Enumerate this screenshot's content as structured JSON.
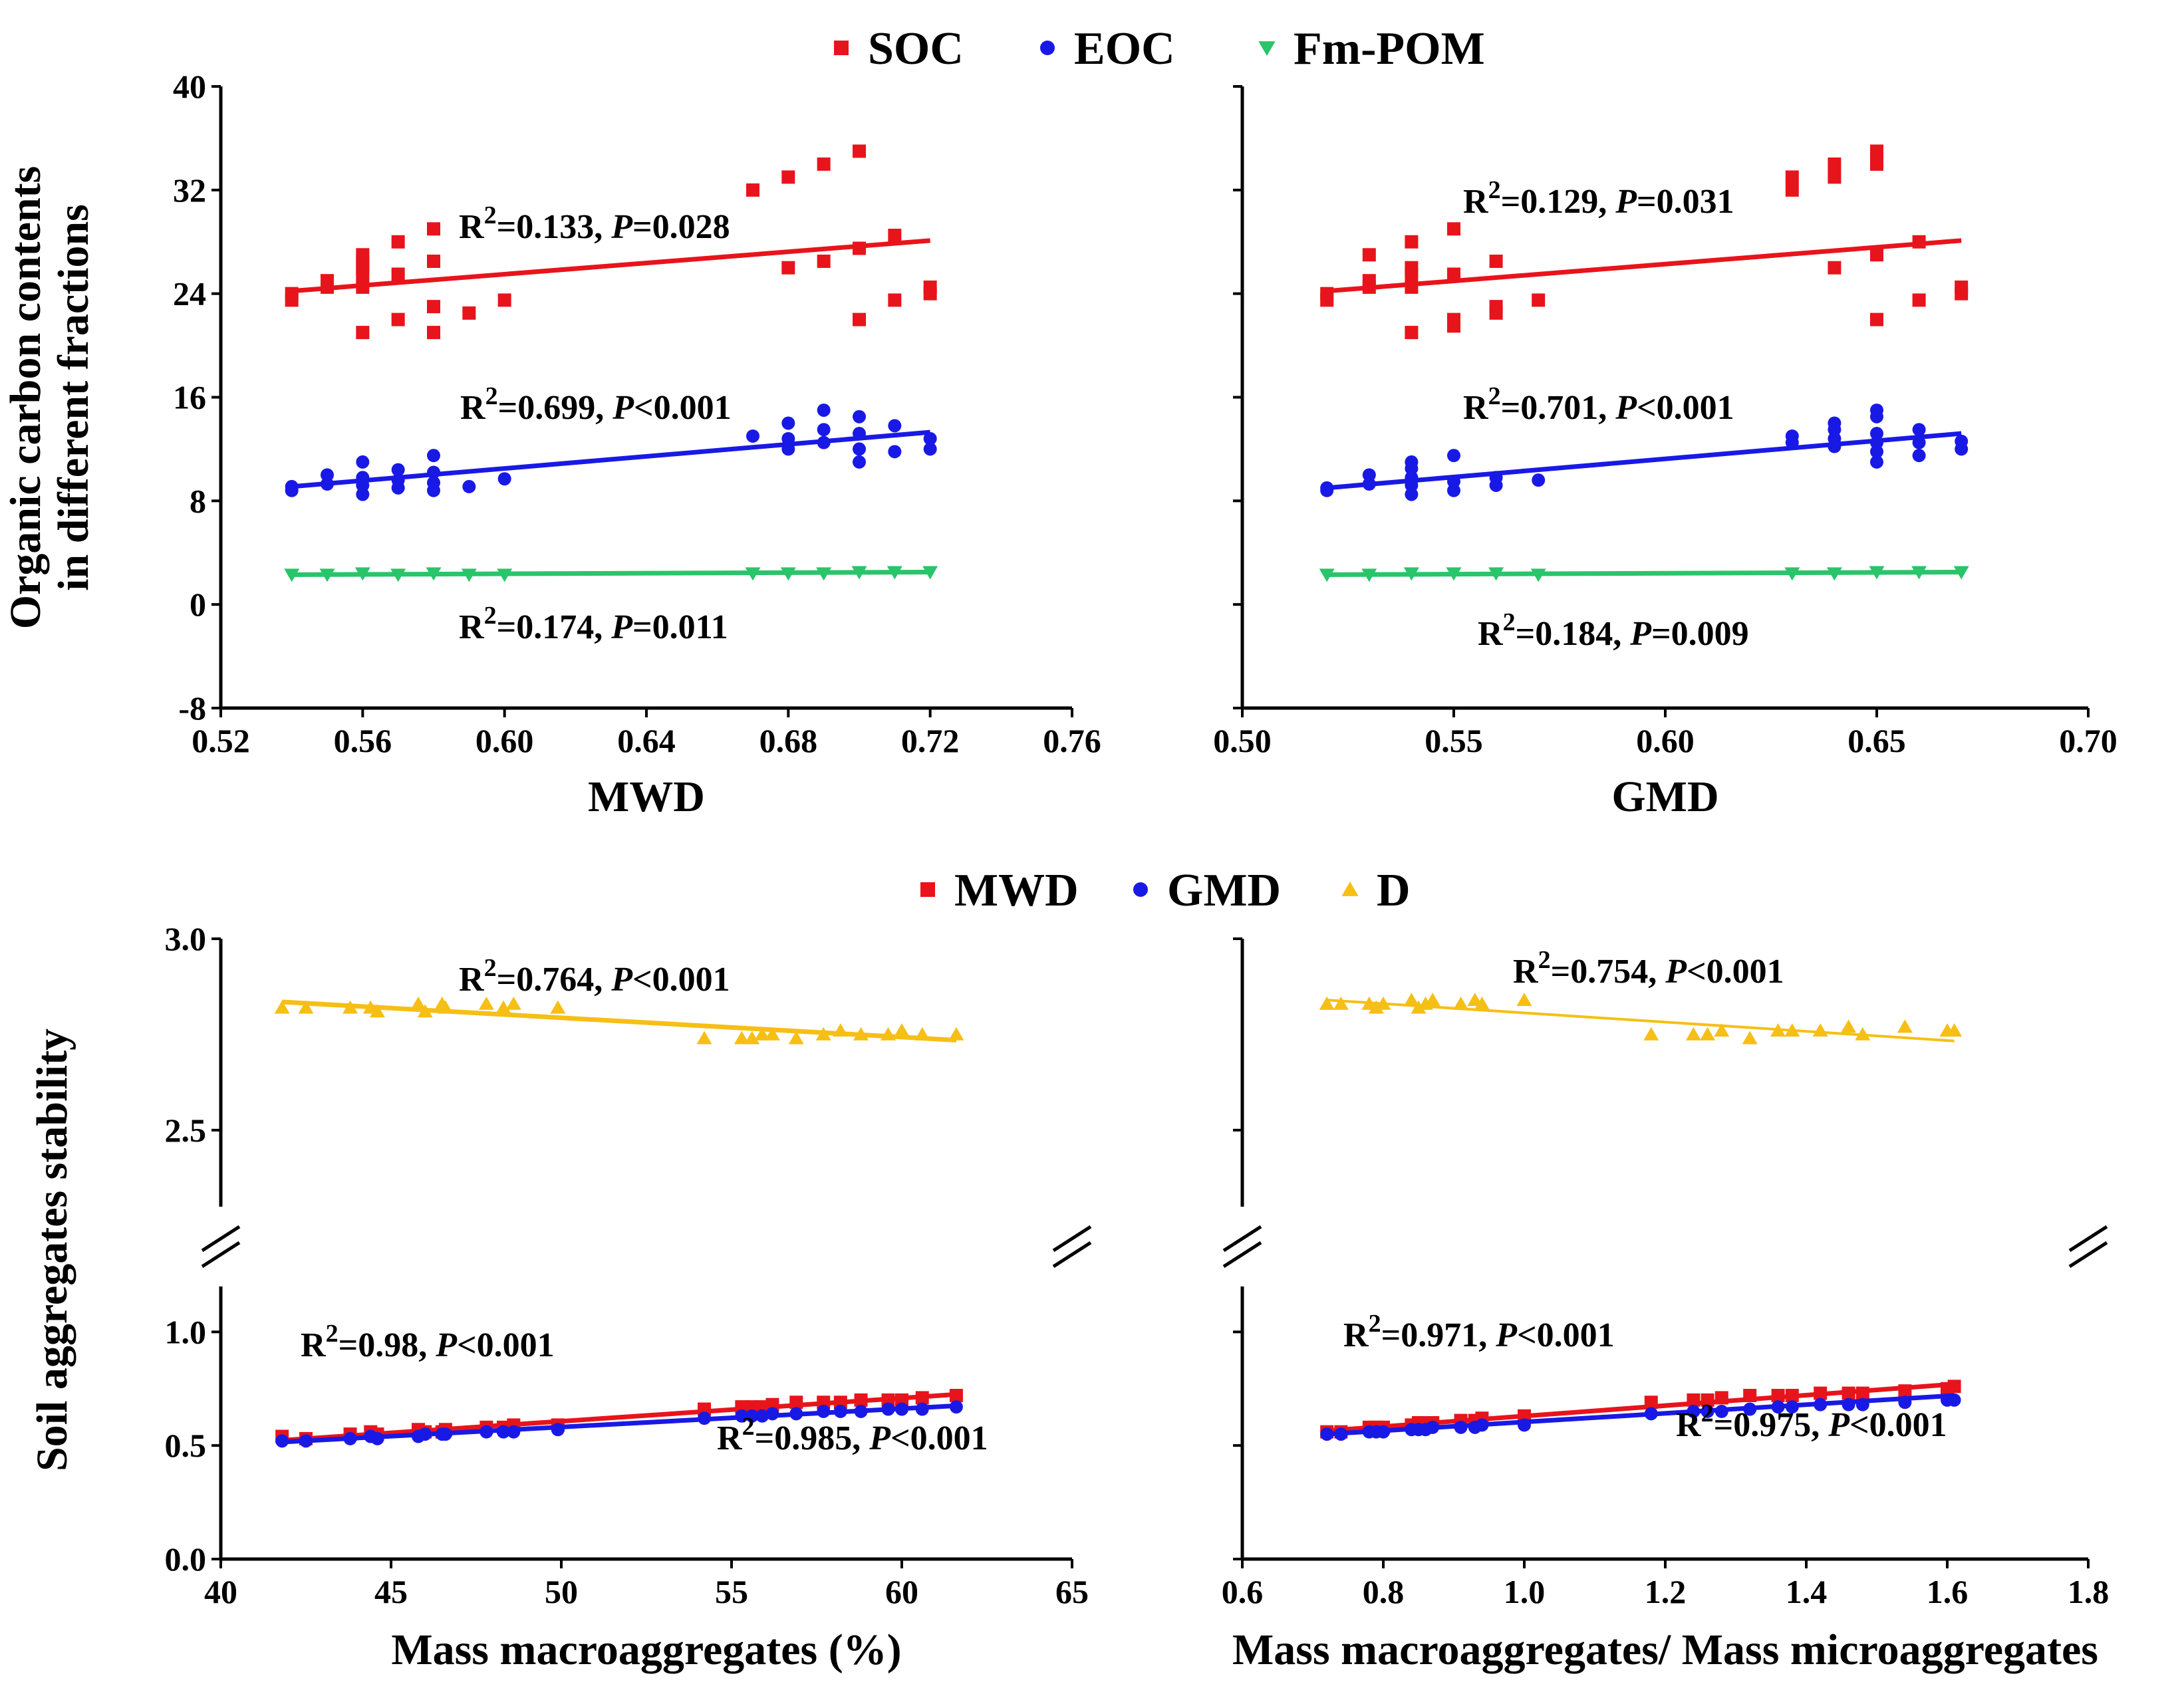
{
  "colors": {
    "soc": "#e8141b",
    "eoc": "#1919e6",
    "fmpom": "#2ac46a",
    "mwd": "#e8141b",
    "gmd": "#1919e6",
    "d": "#f6bf16"
  },
  "legend_top": [
    {
      "label": "SOC",
      "color_key": "soc",
      "marker": "square"
    },
    {
      "label": "EOC",
      "color_key": "eoc",
      "marker": "circle"
    },
    {
      "label": "Fm-POM",
      "color_key": "fmpom",
      "marker": "triangle-down"
    }
  ],
  "legend_bottom": [
    {
      "label": "MWD",
      "color_key": "mwd",
      "marker": "square"
    },
    {
      "label": "GMD",
      "color_key": "gmd",
      "marker": "circle"
    },
    {
      "label": "D",
      "color_key": "d",
      "marker": "triangle-up"
    }
  ],
  "chart_data": [
    {
      "id": "top-left",
      "type": "scatter",
      "xlabel": "MWD",
      "ylabel": "Organic carbon contents in different fractions",
      "ylabel_lines": [
        "Organic carbon contents",
        "in different fractions"
      ],
      "xlim": [
        0.52,
        0.76
      ],
      "ylim": [
        -8,
        40
      ],
      "xticks": [
        "0.52",
        "0.56",
        "0.60",
        "0.64",
        "0.68",
        "0.72",
        "0.76"
      ],
      "yticks": [
        "-8",
        "0",
        "8",
        "16",
        "24",
        "32",
        "40"
      ],
      "series": [
        {
          "name": "SOC",
          "color_key": "soc",
          "marker": "square",
          "x": [
            0.54,
            0.54,
            0.55,
            0.55,
            0.56,
            0.56,
            0.56,
            0.56,
            0.56,
            0.56,
            0.57,
            0.57,
            0.57,
            0.58,
            0.58,
            0.58,
            0.58,
            0.59,
            0.6,
            0.67,
            0.68,
            0.68,
            0.69,
            0.69,
            0.7,
            0.7,
            0.7,
            0.71,
            0.71,
            0.72,
            0.72
          ],
          "y": [
            23.5,
            24.0,
            24.5,
            25.0,
            21.0,
            24.5,
            25.5,
            26.0,
            26.5,
            27.0,
            22.0,
            25.5,
            28.0,
            21.0,
            23.0,
            26.5,
            29.0,
            22.5,
            23.5,
            32.0,
            26.0,
            33.0,
            26.5,
            34.0,
            22.0,
            27.5,
            35.0,
            23.5,
            28.5,
            24.0,
            24.5
          ],
          "fit": {
            "x": [
              0.54,
              0.72
            ],
            "y": [
              24.2,
              28.1
            ]
          },
          "annotation": {
            "r2": "0.133",
            "p_op": "=",
            "p": "0.028"
          }
        },
        {
          "name": "EOC",
          "color_key": "eoc",
          "marker": "circle",
          "x": [
            0.54,
            0.54,
            0.55,
            0.55,
            0.56,
            0.56,
            0.56,
            0.56,
            0.57,
            0.57,
            0.57,
            0.58,
            0.58,
            0.58,
            0.58,
            0.59,
            0.6,
            0.67,
            0.68,
            0.68,
            0.68,
            0.69,
            0.69,
            0.69,
            0.7,
            0.7,
            0.7,
            0.7,
            0.71,
            0.71,
            0.72,
            0.72
          ],
          "y": [
            8.8,
            9.1,
            9.3,
            10.0,
            8.5,
            9.2,
            9.8,
            11.0,
            9.0,
            9.6,
            10.4,
            8.8,
            9.4,
            10.2,
            11.5,
            9.1,
            9.7,
            13.0,
            12.0,
            12.8,
            14.0,
            12.5,
            13.5,
            15.0,
            11.0,
            12.0,
            13.2,
            14.5,
            11.8,
            13.8,
            12.0,
            12.8
          ],
          "fit": {
            "x": [
              0.54,
              0.72
            ],
            "y": [
              9.1,
              13.3
            ]
          },
          "annotation": {
            "r2": "0.699",
            "p_op": "<",
            "p": "0.001"
          }
        },
        {
          "name": "Fm-POM",
          "color_key": "fmpom",
          "marker": "triangle-down",
          "x": [
            0.54,
            0.55,
            0.56,
            0.57,
            0.58,
            0.59,
            0.6,
            0.67,
            0.68,
            0.69,
            0.7,
            0.71,
            0.72
          ],
          "y": [
            2.3,
            2.3,
            2.4,
            2.3,
            2.4,
            2.3,
            2.3,
            2.4,
            2.4,
            2.4,
            2.5,
            2.5,
            2.5
          ],
          "fit": {
            "x": [
              0.54,
              0.72
            ],
            "y": [
              2.3,
              2.5
            ]
          },
          "annotation": {
            "r2": "0.174",
            "p_op": "=",
            "p": "0.011"
          }
        }
      ]
    },
    {
      "id": "top-right",
      "type": "scatter",
      "xlabel": "GMD",
      "ylabel": "",
      "xlim": [
        0.5,
        0.7
      ],
      "ylim": [
        -8,
        40
      ],
      "xticks": [
        "0.50",
        "0.55",
        "0.60",
        "0.65",
        "0.70"
      ],
      "yticks": [],
      "series": [
        {
          "name": "SOC",
          "color_key": "soc",
          "marker": "square",
          "x": [
            0.52,
            0.52,
            0.53,
            0.53,
            0.53,
            0.54,
            0.54,
            0.54,
            0.54,
            0.54,
            0.55,
            0.55,
            0.55,
            0.55,
            0.56,
            0.56,
            0.56,
            0.57,
            0.63,
            0.63,
            0.64,
            0.64,
            0.64,
            0.65,
            0.65,
            0.65,
            0.65,
            0.66,
            0.66,
            0.67,
            0.67
          ],
          "y": [
            23.5,
            24.0,
            24.5,
            25.0,
            27.0,
            21.0,
            24.5,
            25.5,
            26.0,
            28.0,
            21.5,
            22.0,
            25.5,
            29.0,
            22.5,
            23.0,
            26.5,
            23.5,
            32.0,
            33.0,
            26.0,
            33.0,
            34.0,
            22.0,
            27.0,
            34.0,
            35.0,
            23.5,
            28.0,
            24.0,
            24.5
          ],
          "fit": {
            "x": [
              0.52,
              0.67
            ],
            "y": [
              24.2,
              28.1
            ]
          },
          "annotation": {
            "r2": "0.129",
            "p_op": "=",
            "p": "0.031"
          }
        },
        {
          "name": "EOC",
          "color_key": "eoc",
          "marker": "circle",
          "x": [
            0.52,
            0.52,
            0.53,
            0.53,
            0.54,
            0.54,
            0.54,
            0.54,
            0.54,
            0.55,
            0.55,
            0.55,
            0.56,
            0.56,
            0.57,
            0.63,
            0.63,
            0.64,
            0.64,
            0.64,
            0.64,
            0.65,
            0.65,
            0.65,
            0.65,
            0.65,
            0.65,
            0.66,
            0.66,
            0.66,
            0.67,
            0.67
          ],
          "y": [
            8.8,
            9.0,
            9.3,
            10.0,
            8.5,
            9.2,
            9.8,
            10.5,
            11.0,
            8.8,
            9.5,
            11.5,
            9.2,
            9.8,
            9.6,
            12.5,
            13.0,
            12.2,
            12.8,
            13.5,
            14.0,
            11.0,
            11.8,
            12.5,
            13.2,
            14.5,
            15.0,
            11.5,
            12.5,
            13.5,
            12.0,
            12.6
          ],
          "fit": {
            "x": [
              0.52,
              0.67
            ],
            "y": [
              9.0,
              13.2
            ]
          },
          "annotation": {
            "r2": "0.701",
            "p_op": "<",
            "p": "0.001"
          }
        },
        {
          "name": "Fm-POM",
          "color_key": "fmpom",
          "marker": "triangle-down",
          "x": [
            0.52,
            0.53,
            0.54,
            0.55,
            0.56,
            0.57,
            0.63,
            0.64,
            0.65,
            0.66,
            0.67
          ],
          "y": [
            2.3,
            2.3,
            2.4,
            2.4,
            2.4,
            2.3,
            2.4,
            2.4,
            2.5,
            2.5,
            2.5
          ],
          "fit": {
            "x": [
              0.52,
              0.67
            ],
            "y": [
              2.3,
              2.5
            ]
          },
          "annotation": {
            "r2": "0.184",
            "p_op": "=",
            "p": "0.009"
          }
        }
      ]
    },
    {
      "id": "bottom-left",
      "type": "scatter",
      "xlabel": "Mass macroaggregates (%)",
      "ylabel": "Soil aggregates stability",
      "xlim": [
        40,
        65
      ],
      "ylim_lower": [
        0.0,
        1.2
      ],
      "ylim_upper": [
        2.3,
        3.0
      ],
      "xticks": [
        "40",
        "45",
        "50",
        "55",
        "60",
        "65"
      ],
      "yticks_lower": [
        "0.0",
        "0.5",
        "1.0"
      ],
      "yticks_upper": [
        "2.5",
        "3.0"
      ],
      "series": [
        {
          "name": "MWD",
          "color_key": "mwd",
          "marker": "square",
          "x": [
            41.8,
            42.5,
            43.8,
            44.4,
            44.6,
            45.8,
            46.0,
            46.5,
            46.6,
            47.8,
            48.3,
            48.6,
            49.9,
            54.2,
            55.3,
            55.6,
            55.9,
            56.2,
            56.9,
            57.7,
            58.2,
            58.8,
            59.6,
            60.0,
            60.6,
            61.6
          ],
          "y": [
            0.54,
            0.53,
            0.55,
            0.56,
            0.55,
            0.57,
            0.56,
            0.56,
            0.57,
            0.58,
            0.58,
            0.59,
            0.59,
            0.66,
            0.67,
            0.67,
            0.67,
            0.68,
            0.69,
            0.69,
            0.69,
            0.7,
            0.7,
            0.7,
            0.71,
            0.72
          ],
          "fit": {
            "x": [
              41.8,
              61.6
            ],
            "y": [
              0.523,
              0.725
            ]
          },
          "annotation": {
            "r2": "0.98",
            "p_op": "<",
            "p": "0.001"
          }
        },
        {
          "name": "GMD",
          "color_key": "gmd",
          "marker": "circle",
          "x": [
            41.8,
            42.5,
            43.8,
            44.4,
            44.6,
            45.8,
            46.0,
            46.5,
            46.6,
            47.8,
            48.3,
            48.6,
            49.9,
            54.2,
            55.3,
            55.6,
            55.9,
            56.2,
            56.9,
            57.7,
            58.2,
            58.8,
            59.6,
            60.0,
            60.6,
            61.6
          ],
          "y": [
            0.52,
            0.52,
            0.53,
            0.54,
            0.53,
            0.54,
            0.55,
            0.55,
            0.55,
            0.56,
            0.56,
            0.56,
            0.57,
            0.62,
            0.63,
            0.63,
            0.63,
            0.64,
            0.64,
            0.65,
            0.65,
            0.65,
            0.66,
            0.66,
            0.66,
            0.67
          ],
          "fit": {
            "x": [
              41.8,
              61.6
            ],
            "y": [
              0.515,
              0.675
            ]
          },
          "annotation": {
            "r2": "0.985",
            "p_op": "<",
            "p": "0.001"
          }
        },
        {
          "name": "D",
          "color_key": "d",
          "marker": "triangle-up",
          "x": [
            41.8,
            42.5,
            43.8,
            44.4,
            44.6,
            45.8,
            46.0,
            46.5,
            46.6,
            47.8,
            48.3,
            48.6,
            49.9,
            54.2,
            55.3,
            55.6,
            55.9,
            56.2,
            56.9,
            57.7,
            58.2,
            58.8,
            59.6,
            60.0,
            60.6,
            61.6
          ],
          "y": [
            2.82,
            2.82,
            2.82,
            2.82,
            2.81,
            2.83,
            2.81,
            2.83,
            2.82,
            2.83,
            2.82,
            2.83,
            2.82,
            2.74,
            2.74,
            2.74,
            2.75,
            2.75,
            2.74,
            2.75,
            2.76,
            2.75,
            2.75,
            2.76,
            2.75,
            2.75
          ],
          "fit": {
            "x": [
              41.8,
              61.6
            ],
            "y": [
              2.835,
              2.735
            ]
          },
          "annotation": {
            "r2": "0.764",
            "p_op": "<",
            "p": "0.001"
          }
        }
      ]
    },
    {
      "id": "bottom-right",
      "type": "scatter",
      "xlabel": "Mass macroaggregates/ Mass microaggregates",
      "ylabel": "",
      "xlim": [
        0.6,
        1.8
      ],
      "ylim_lower": [
        0.0,
        1.2
      ],
      "ylim_upper": [
        2.3,
        3.0
      ],
      "xticks": [
        "0.6",
        "0.8",
        "1.0",
        "1.2",
        "1.4",
        "1.6",
        "1.8"
      ],
      "yticks_lower": [],
      "yticks_upper": [],
      "series": [
        {
          "name": "MWD",
          "color_key": "mwd",
          "marker": "square",
          "x": [
            0.72,
            0.74,
            0.78,
            0.79,
            0.8,
            0.84,
            0.85,
            0.86,
            0.87,
            0.91,
            0.93,
            0.94,
            1.0,
            1.18,
            1.24,
            1.26,
            1.28,
            1.32,
            1.36,
            1.38,
            1.42,
            1.46,
            1.48,
            1.54,
            1.6,
            1.61
          ],
          "y": [
            0.56,
            0.56,
            0.58,
            0.58,
            0.58,
            0.59,
            0.6,
            0.6,
            0.6,
            0.61,
            0.61,
            0.62,
            0.63,
            0.69,
            0.7,
            0.7,
            0.71,
            0.72,
            0.72,
            0.72,
            0.73,
            0.73,
            0.73,
            0.74,
            0.75,
            0.76
          ],
          "fit": {
            "x": [
              0.72,
              1.61
            ],
            "y": [
              0.565,
              0.77
            ]
          },
          "annotation": {
            "r2": "0.971",
            "p_op": "<",
            "p": "0.001"
          }
        },
        {
          "name": "GMD",
          "color_key": "gmd",
          "marker": "circle",
          "x": [
            0.72,
            0.74,
            0.78,
            0.79,
            0.8,
            0.84,
            0.85,
            0.86,
            0.87,
            0.91,
            0.93,
            0.94,
            1.0,
            1.18,
            1.24,
            1.26,
            1.28,
            1.32,
            1.36,
            1.38,
            1.42,
            1.46,
            1.48,
            1.54,
            1.6,
            1.61
          ],
          "y": [
            0.55,
            0.55,
            0.56,
            0.56,
            0.56,
            0.57,
            0.57,
            0.57,
            0.58,
            0.58,
            0.58,
            0.59,
            0.59,
            0.64,
            0.65,
            0.65,
            0.65,
            0.66,
            0.67,
            0.67,
            0.68,
            0.68,
            0.68,
            0.69,
            0.7,
            0.7
          ],
          "fit": {
            "x": [
              0.72,
              1.61
            ],
            "y": [
              0.55,
              0.72
            ]
          },
          "annotation": {
            "r2": "0.975",
            "p_op": "<",
            "p": "0.001"
          }
        },
        {
          "name": "D",
          "color_key": "d",
          "marker": "triangle-up",
          "x": [
            0.72,
            0.74,
            0.78,
            0.79,
            0.8,
            0.84,
            0.85,
            0.86,
            0.87,
            0.91,
            0.93,
            0.94,
            1.0,
            1.18,
            1.24,
            1.26,
            1.28,
            1.32,
            1.36,
            1.38,
            1.42,
            1.46,
            1.48,
            1.54,
            1.6,
            1.61
          ],
          "y": [
            2.83,
            2.83,
            2.83,
            2.82,
            2.83,
            2.84,
            2.82,
            2.83,
            2.84,
            2.83,
            2.84,
            2.83,
            2.84,
            2.75,
            2.75,
            2.75,
            2.76,
            2.74,
            2.76,
            2.76,
            2.76,
            2.77,
            2.75,
            2.77,
            2.76,
            2.76
          ],
          "fit": {
            "x": [
              0.72,
              1.61
            ],
            "y": [
              2.84,
              2.733
            ]
          },
          "annotation": {
            "r2": "0.754",
            "p_op": "<",
            "p": "0.001"
          }
        }
      ]
    }
  ]
}
